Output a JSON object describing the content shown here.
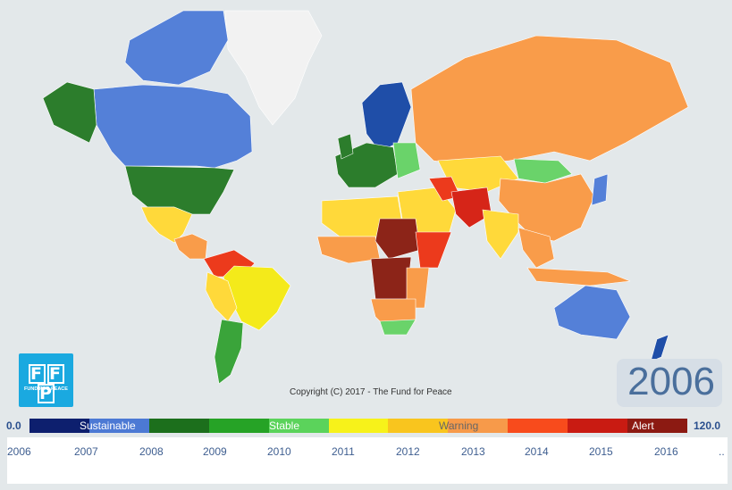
{
  "copyright": "Copyright (C) 2017 - The Fund for Peace",
  "current_year": "2006",
  "logo": {
    "letters": [
      "F",
      "F",
      "P"
    ],
    "subtitle": "FUND FOR PEACE"
  },
  "scale": {
    "min": "0.0",
    "max": "120.0",
    "colors": [
      "#0d1f6e",
      "#4c79d4",
      "#1c6f1c",
      "#26a326",
      "#5bd35b",
      "#f7f21a",
      "#f9c51e",
      "#f79a4a",
      "#f84b1c",
      "#c91b12",
      "#8c1a12"
    ],
    "labels": {
      "sustainable": "Sustainable",
      "stable": "Stable",
      "warning": "Warning",
      "alert": "Alert"
    }
  },
  "years": [
    "2006",
    "2007",
    "2008",
    "2009",
    "2010",
    "2011",
    "2012",
    "2013",
    "2014",
    "2015",
    "2016"
  ],
  "more": "..",
  "map_colors": {
    "ocean": "#e3e8ea",
    "very_sustainable": "#1f4ea8",
    "sustainable": "#5480d8",
    "very_stable": "#2c7d2c",
    "stable": "#3aa43a",
    "more_stable": "#6ad36a",
    "warning": "#ffd93a",
    "elevated_warning": "#f4ea1a",
    "high_warning": "#f99c4a",
    "alert": "#ec3a1c",
    "high_alert": "#d62518",
    "very_high_alert": "#8c2418",
    "no_data": "#f2f2f2"
  }
}
